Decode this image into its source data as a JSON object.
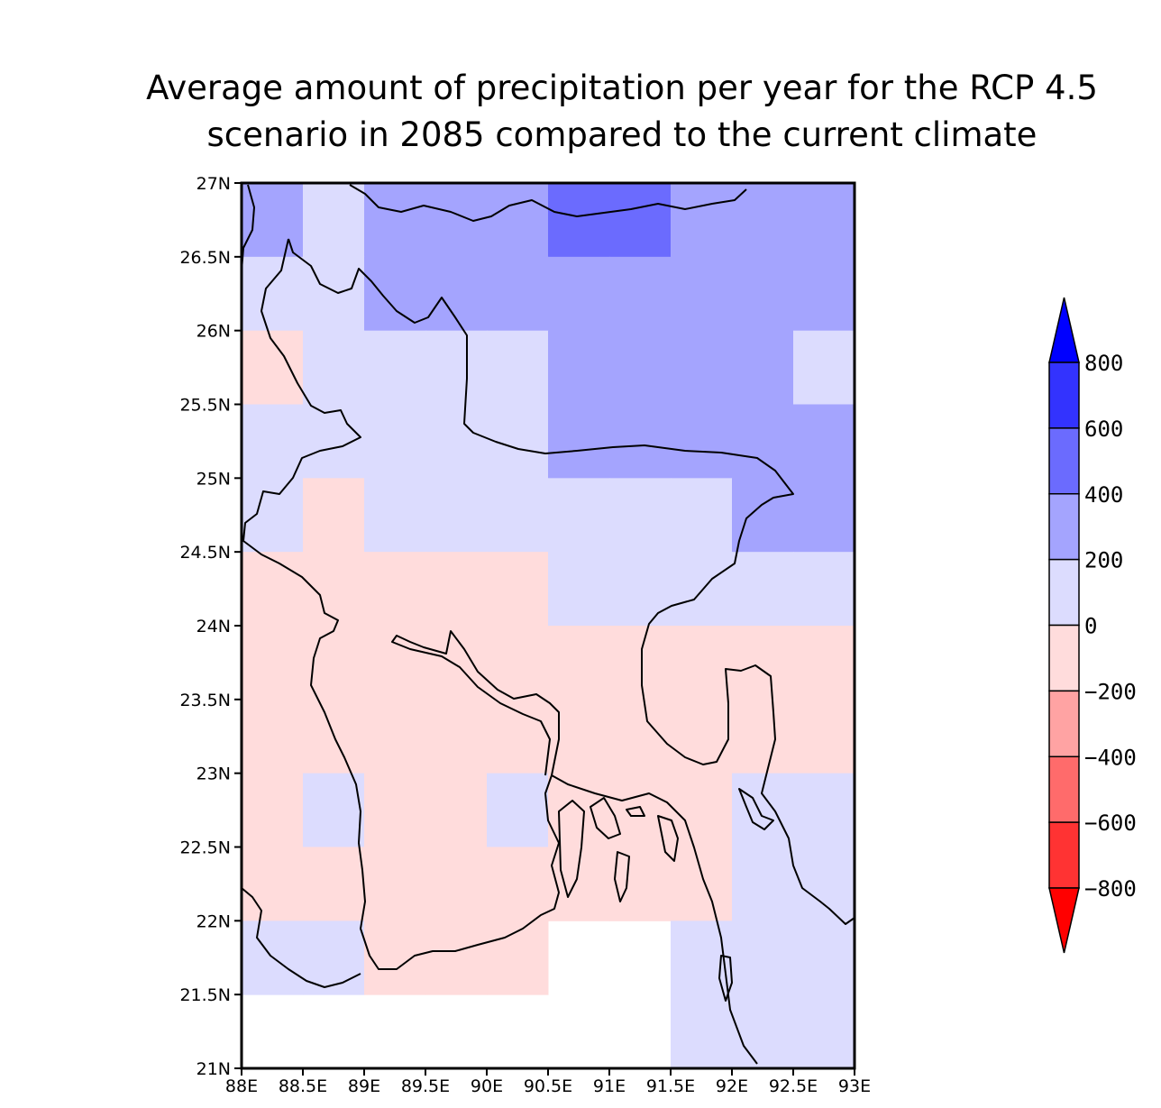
{
  "title": {
    "line1": "Average amount of precipitation per year for the RCP 4.5",
    "line2": "scenario in 2085 compared to the current climate"
  },
  "chart_data": {
    "type": "heatmap",
    "title": "Average amount of precipitation per year for the RCP 4.5 scenario in 2085 compared to the current climate",
    "xlim": [
      88,
      93
    ],
    "ylim": [
      21,
      27
    ],
    "cell_size_deg": 0.5,
    "x_ticks": [
      "88E",
      "88.5E",
      "89E",
      "89.5E",
      "90E",
      "90.5E",
      "91E",
      "91.5E",
      "92E",
      "92.5E",
      "93E"
    ],
    "y_ticks": [
      "21N",
      "21.5N",
      "22N",
      "22.5N",
      "23N",
      "23.5N",
      "24N",
      "24.5N",
      "25N",
      "25.5N",
      "26N",
      "26.5N",
      "27N"
    ],
    "grid": false,
    "rows_lat_top": [
      26.5,
      26,
      25.5,
      25,
      24.5,
      24,
      23.5,
      23,
      22.5,
      22,
      21.5,
      21
    ],
    "cell_class_matrix_note": "row 0 = northernmost (26.5-27N), col 0 = westernmost (88-88.5E); value = colorbar class index, -1 = no data",
    "cell_class_matrix": [
      [
        6,
        5,
        6,
        6,
        6,
        7,
        7,
        6,
        6,
        6
      ],
      [
        5,
        5,
        6,
        6,
        6,
        6,
        6,
        6,
        6,
        6
      ],
      [
        4,
        5,
        5,
        5,
        5,
        6,
        6,
        6,
        6,
        5
      ],
      [
        5,
        5,
        5,
        5,
        5,
        6,
        6,
        6,
        6,
        6
      ],
      [
        5,
        4,
        5,
        5,
        5,
        5,
        5,
        5,
        6,
        6
      ],
      [
        4,
        4,
        4,
        4,
        4,
        5,
        5,
        5,
        5,
        5
      ],
      [
        4,
        4,
        4,
        4,
        4,
        4,
        4,
        4,
        4,
        4
      ],
      [
        4,
        4,
        4,
        4,
        4,
        4,
        4,
        4,
        4,
        4
      ],
      [
        4,
        5,
        4,
        4,
        5,
        4,
        4,
        4,
        5,
        5
      ],
      [
        4,
        4,
        4,
        4,
        4,
        4,
        4,
        4,
        5,
        5
      ],
      [
        5,
        5,
        4,
        4,
        4,
        -1,
        -1,
        5,
        5,
        5
      ],
      [
        -1,
        -1,
        -1,
        -1,
        -1,
        -1,
        -1,
        5,
        5,
        5
      ]
    ],
    "colorbar": {
      "levels": [
        -800,
        -600,
        -400,
        -200,
        0,
        200,
        400,
        600,
        800
      ],
      "labels": [
        "800",
        "600",
        "400",
        "200",
        "0",
        "−200",
        "−400",
        "−600",
        "−800"
      ],
      "classes": [
        {
          "range": "< -800",
          "color": "#ff0000"
        },
        {
          "range": "-800 to -600",
          "color": "#ff3333"
        },
        {
          "range": "-600 to -400",
          "color": "#ff6b6b"
        },
        {
          "range": "-400 to -200",
          "color": "#ffa3a3"
        },
        {
          "range": "-200 to 0",
          "color": "#ffdcdc"
        },
        {
          "range": "0 to 200",
          "color": "#dcdcfe"
        },
        {
          "range": "200 to 400",
          "color": "#a4a4fe"
        },
        {
          "range": "400 to 600",
          "color": "#6b6bfe"
        },
        {
          "range": "600 to 800",
          "color": "#3333fe"
        },
        {
          "range": "> 800",
          "color": "#0000ff"
        }
      ]
    }
  }
}
